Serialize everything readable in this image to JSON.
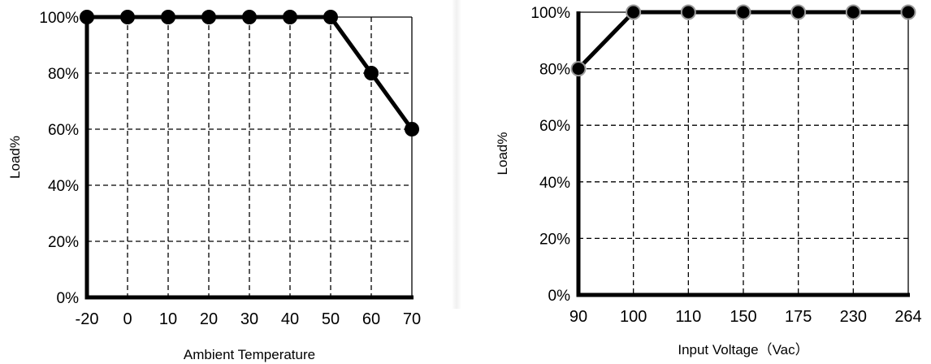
{
  "chart_data": [
    {
      "type": "line",
      "title": "",
      "xlabel": "Ambient Temperature",
      "ylabel": "Load%",
      "categories": [
        "-20",
        "0",
        "10",
        "20",
        "30",
        "40",
        "50",
        "60",
        "70"
      ],
      "y_ticks": [
        "0%",
        "20%",
        "40%",
        "60%",
        "80%",
        "100%"
      ],
      "ylim": [
        0,
        100
      ],
      "grid": true,
      "series": [
        {
          "values": [
            100,
            100,
            100,
            100,
            100,
            100,
            100,
            80,
            60
          ]
        }
      ]
    },
    {
      "type": "line",
      "title": "",
      "xlabel": "Input Voltage（Vac）",
      "ylabel": "Load%",
      "categories": [
        "90",
        "100",
        "110",
        "150",
        "175",
        "230",
        "264"
      ],
      "y_ticks": [
        "0%",
        "20%",
        "40%",
        "60%",
        "80%",
        "100%"
      ],
      "ylim": [
        0,
        100
      ],
      "grid": true,
      "series": [
        {
          "values": [
            80,
            100,
            100,
            100,
            100,
            100,
            100
          ]
        }
      ]
    }
  ],
  "colors": {
    "line": "#000000",
    "marker_left": "#000000",
    "marker_right": "#999999"
  }
}
